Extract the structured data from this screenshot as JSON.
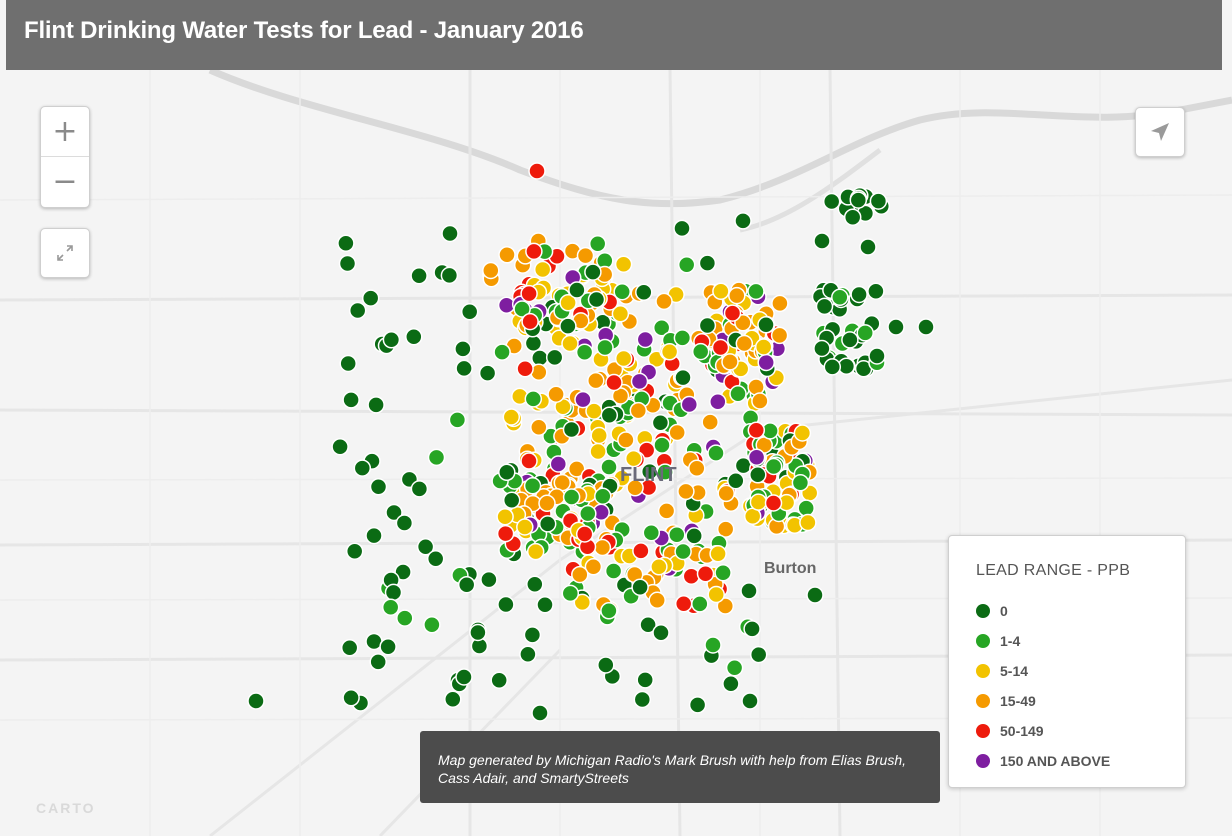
{
  "header": {
    "title": "Flint Drinking Water Tests for Lead - January 2016"
  },
  "map_controls": {
    "zoom_in_label": "+",
    "zoom_out_label": "−",
    "fullscreen_icon": "fullscreen-icon",
    "locate_icon": "locate-arrow-icon"
  },
  "places": {
    "flint": "FLINT",
    "burton": "Burton"
  },
  "legend": {
    "title": "LEAD RANGE - PPB",
    "items": [
      {
        "label": "0",
        "color": "#0b6b14"
      },
      {
        "label": "1-4",
        "color": "#27a524"
      },
      {
        "label": "5-14",
        "color": "#f2c300"
      },
      {
        "label": "15-49",
        "color": "#f59a00"
      },
      {
        "label": "50-149",
        "color": "#ee1b0c"
      },
      {
        "label": "150 AND ABOVE",
        "color": "#7e1ea0"
      }
    ]
  },
  "credit": {
    "text": "Map generated by Michigan Radio's Mark Brush with help from Elias Brush, Cass Adair, and SmartyStreets"
  },
  "attribution": {
    "text": "CARTO"
  }
}
